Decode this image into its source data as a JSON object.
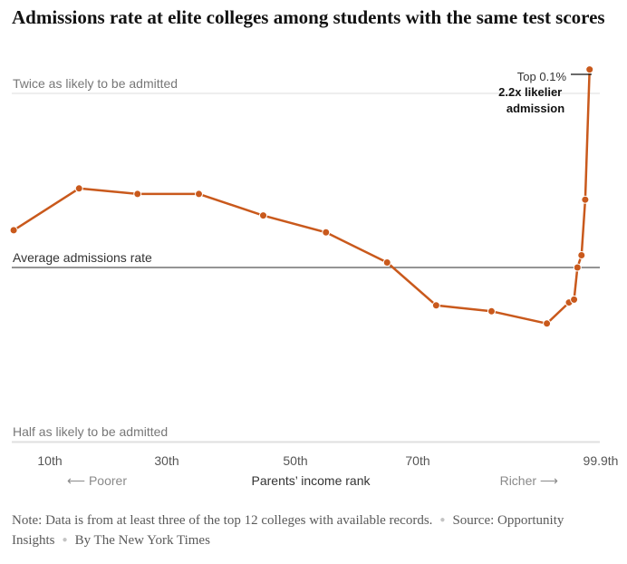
{
  "title": "Admissions rate at elite colleges among students with the same test scores",
  "chart_data": {
    "type": "line",
    "ylabel": "",
    "xlabel": "Parents’ income rank",
    "x_end_labels": {
      "left": "⟵ Poorer",
      "right": "Richer ⟶"
    },
    "x_ticks": [
      {
        "label": "10th",
        "value": 10
      },
      {
        "label": "30th",
        "value": 30
      },
      {
        "label": "50th",
        "value": 50
      },
      {
        "label": "70th",
        "value": 70
      },
      {
        "label": "99.9th",
        "value": 99.9
      }
    ],
    "y_scale": "log2",
    "ylim": [
      0.5,
      2.0
    ],
    "reference_lines": [
      {
        "label": "Twice as likely to be admitted",
        "value": 2.0,
        "style": "light"
      },
      {
        "label": "Average admissions rate",
        "value": 1.0,
        "style": "dark"
      },
      {
        "label": "Half as likely to be admitted",
        "value": 0.5,
        "style": "light"
      }
    ],
    "series": [
      {
        "color": "#c9591c",
        "points": [
          {
            "x": 0.5,
            "y": 1.16
          },
          {
            "x": 15,
            "y": 1.37
          },
          {
            "x": 25,
            "y": 1.34
          },
          {
            "x": 35,
            "y": 1.34
          },
          {
            "x": 45,
            "y": 1.23
          },
          {
            "x": 55,
            "y": 1.15
          },
          {
            "x": 65,
            "y": 1.02
          },
          {
            "x": 72.5,
            "y": 0.86
          },
          {
            "x": 80,
            "y": 0.84
          },
          {
            "x": 87.5,
            "y": 0.8
          },
          {
            "x": 90.5,
            "y": 0.87
          },
          {
            "x": 92,
            "y": 0.88
          },
          {
            "x": 93,
            "y": 1.0
          },
          {
            "x": 94.2,
            "y": 1.05
          },
          {
            "x": 95.3,
            "y": 1.31
          },
          {
            "x": 96.6,
            "y": 2.2
          }
        ]
      }
    ],
    "annotation": {
      "label": "Top 0.1%",
      "value_text": "2.2x likelier admission"
    }
  },
  "footer": {
    "note": "Note: Data is from at least three of the top 12 colleges with available records.",
    "source": "Source: Opportunity Insights",
    "credit": "By The New York Times",
    "separator": "●"
  }
}
